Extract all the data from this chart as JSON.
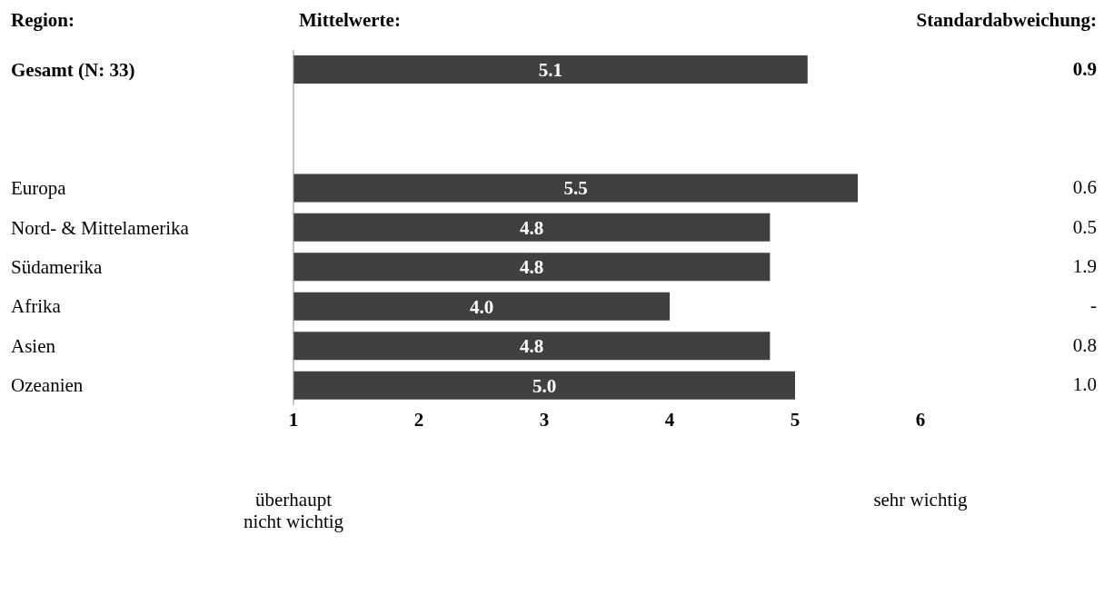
{
  "chart_data": {
    "type": "bar",
    "orientation": "horizontal",
    "title": "Mittelwerte:",
    "ylabel": "Region:",
    "categories": [
      "Gesamt (N: 33)",
      null,
      null,
      "Europa",
      "Nord- & Mittelamerika",
      "Südamerika",
      "Afrika",
      "Asien",
      "Ozeanien"
    ],
    "values": [
      5.1,
      null,
      null,
      5.5,
      4.8,
      4.8,
      4.0,
      4.8,
      5.0
    ],
    "value_labels": [
      "5.1",
      null,
      null,
      "5.5",
      "4.8",
      "4.8",
      "4.0",
      "4.8",
      "5.0"
    ],
    "color": "#404040",
    "xlim": [
      1,
      6
    ],
    "xticks": [
      1,
      2,
      3,
      4,
      5,
      6
    ],
    "annotations": [
      "Standardabweichung:",
      "0.9",
      "0.6",
      "0.5",
      "1.9",
      "-",
      "0.8",
      "1.0",
      "überhaupt nicht wichtig",
      "sehr wichtig"
    ]
  }
}
